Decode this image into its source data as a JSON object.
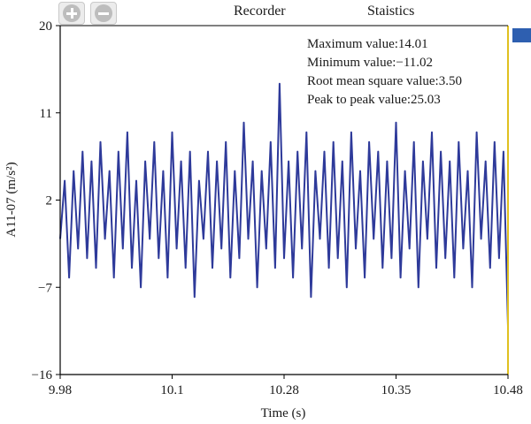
{
  "toolbar": {
    "zoom_in_icon": "plus-circle-icon",
    "zoom_out_icon": "minus-circle-icon"
  },
  "menu": {
    "recorder": "Recorder",
    "statistics": "Staistics"
  },
  "statistics": {
    "max": "Maximum value:14.01",
    "min": "Minimum value:−11.02",
    "rms": "Root mean square value:3.50",
    "ptp": "Peak to peak value:25.03"
  },
  "colors": {
    "series": "#2e3a9a",
    "legend_swatch": "#2e5fb0",
    "right_border": "#e0c020",
    "axis": "#000000"
  },
  "chart_data": {
    "type": "line",
    "xlabel": "Time (s)",
    "ylabel": "A11-07 (m/s²)",
    "x_tick_labels": [
      "9.98",
      "10.1",
      "10.28",
      "10.35",
      "10.48"
    ],
    "y_tick_labels": [
      "20",
      "11",
      "2",
      "−7",
      "−16"
    ],
    "y_ticks": [
      20,
      11,
      2,
      -7,
      -16
    ],
    "xlim": [
      9.98,
      10.48
    ],
    "ylim": [
      -16,
      20
    ],
    "grid": false,
    "series": [
      {
        "x": [
          9.98,
          9.985,
          9.99,
          9.995,
          10.0,
          10.005,
          10.01,
          10.015,
          10.02,
          10.025,
          10.03,
          10.035,
          10.04,
          10.045,
          10.05,
          10.055,
          10.06,
          10.065,
          10.07,
          10.075,
          10.08,
          10.085,
          10.09,
          10.095,
          10.1,
          10.105,
          10.11,
          10.115,
          10.12,
          10.125,
          10.13,
          10.135,
          10.14,
          10.145,
          10.15,
          10.155,
          10.16,
          10.165,
          10.17,
          10.175,
          10.18,
          10.185,
          10.19,
          10.195,
          10.2,
          10.205,
          10.21,
          10.215,
          10.22,
          10.225,
          10.23,
          10.235,
          10.24,
          10.245,
          10.25,
          10.255,
          10.26,
          10.265,
          10.27,
          10.275,
          10.28,
          10.285,
          10.29,
          10.295,
          10.3,
          10.305,
          10.31,
          10.315,
          10.32,
          10.325,
          10.33,
          10.335,
          10.34,
          10.345,
          10.35,
          10.355,
          10.36,
          10.365,
          10.37,
          10.375,
          10.38,
          10.385,
          10.39,
          10.395,
          10.4,
          10.405,
          10.41,
          10.415,
          10.42,
          10.425,
          10.43,
          10.435,
          10.44,
          10.445,
          10.45,
          10.455,
          10.46,
          10.465,
          10.47,
          10.475,
          10.48
        ],
        "values": [
          -2,
          4,
          -6,
          5,
          -3,
          7,
          -4,
          6,
          -5,
          8,
          -2,
          5,
          -6,
          7,
          -3,
          9,
          -5,
          4,
          -7,
          6,
          -2,
          8,
          -4,
          5,
          -6,
          9,
          -3,
          6,
          -5,
          7,
          -8,
          4,
          -2,
          7,
          -5,
          6,
          -3,
          8,
          -6,
          5,
          -4,
          10,
          -2,
          6,
          -7,
          5,
          -3,
          8,
          -5,
          14,
          -4,
          6,
          -6,
          7,
          -3,
          9,
          -8,
          5,
          -2,
          7,
          -5,
          8,
          -4,
          6,
          -7,
          9,
          -3,
          5,
          -6,
          8,
          -2,
          7,
          -5,
          6,
          -4,
          10,
          -6,
          5,
          -3,
          8,
          -7,
          6,
          -2,
          9,
          -5,
          7,
          -4,
          6,
          -6,
          8,
          -3,
          5,
          -7,
          9,
          -2,
          6,
          -5,
          8,
          -4,
          7,
          -11
        ]
      }
    ]
  }
}
